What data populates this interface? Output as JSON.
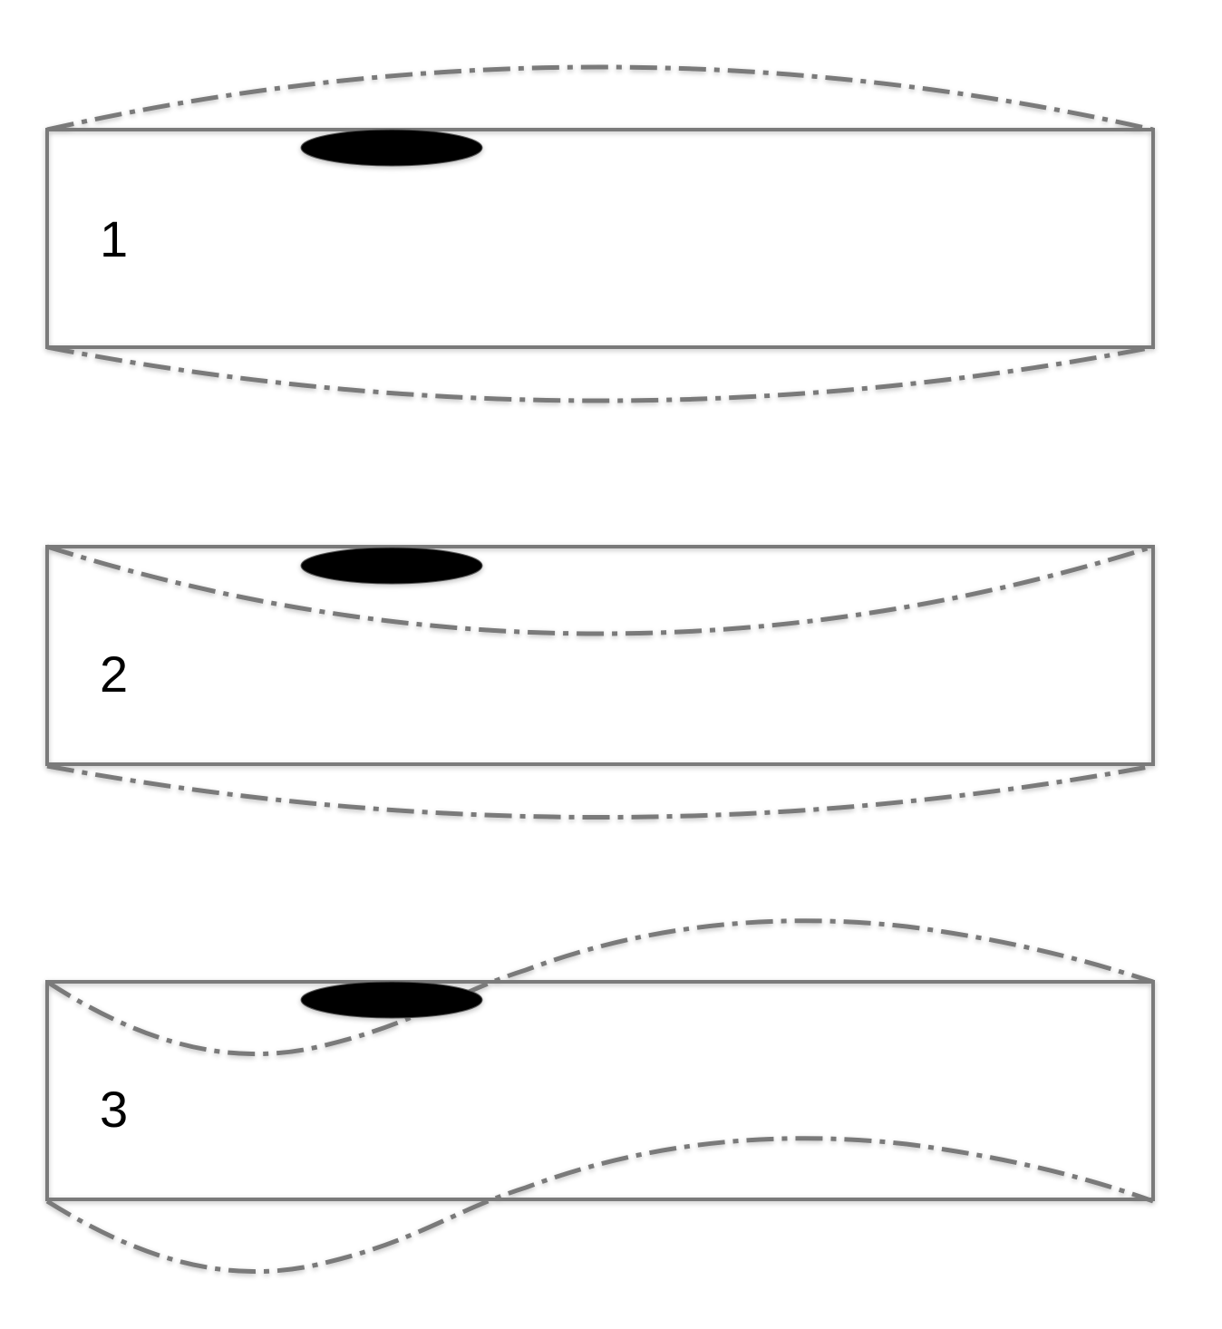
{
  "colors": {
    "outline": "#7a7a7a",
    "mass": "#000000",
    "background": "#ffffff"
  },
  "panels": [
    {
      "label": "1"
    },
    {
      "label": "2"
    },
    {
      "label": "3"
    }
  ]
}
